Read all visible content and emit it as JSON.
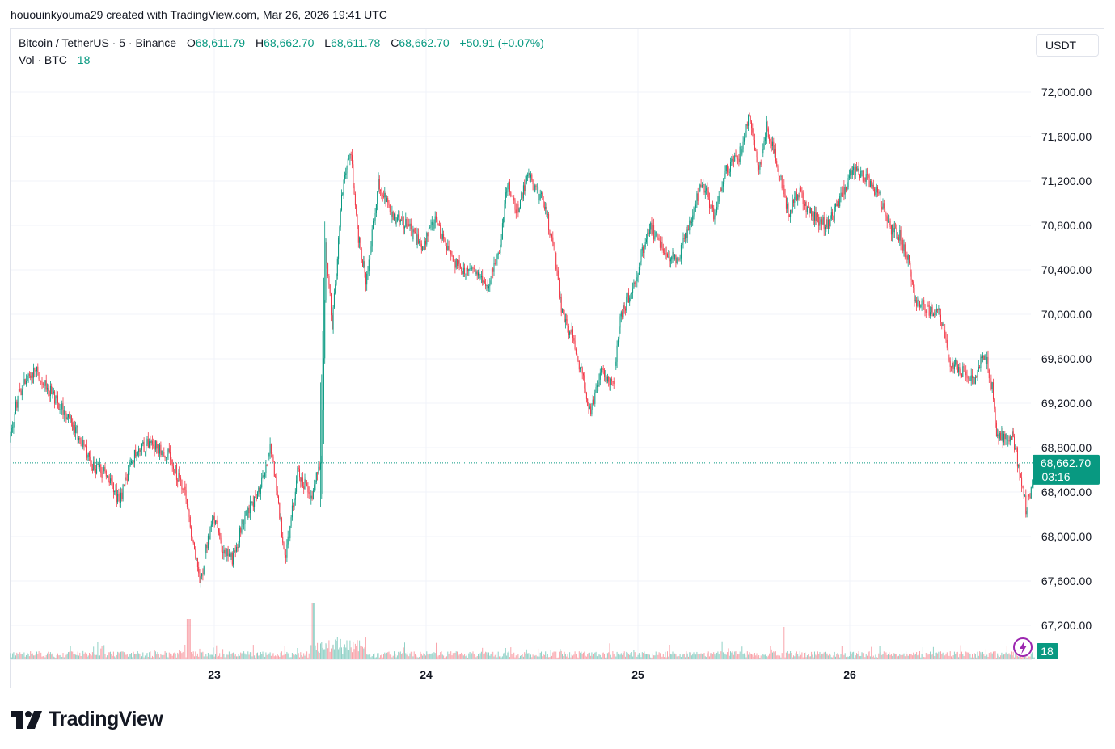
{
  "caption": "hououinkyouma29 created with TradingView.com, Mar 26, 2026 19:41 UTC",
  "legend": {
    "symbol": "Bitcoin / TetherUS · 5 · Binance",
    "o_label": "O",
    "o_value": "68,611.79",
    "h_label": "H",
    "h_value": "68,662.70",
    "l_label": "L",
    "l_value": "68,611.78",
    "c_label": "C",
    "c_value": "68,662.70",
    "change": "+50.91 (+0.07%)",
    "vol_label": "Vol · BTC",
    "vol_value": "18"
  },
  "currency": "USDT",
  "brand": "TradingView",
  "colors": {
    "up": "#089981",
    "down": "#f23645",
    "grid": "#f0f3fa",
    "text": "#131722"
  },
  "chart_data": {
    "type": "candlestick",
    "interval": "5m",
    "y_ticks": [
      "72,000.00",
      "71,600.00",
      "71,200.00",
      "70,800.00",
      "70,400.00",
      "70,000.00",
      "69,600.00",
      "69,200.00",
      "68,800.00",
      "68,400.00",
      "68,000.00",
      "67,600.00",
      "67,200.00"
    ],
    "y_tick_values": [
      72000,
      71600,
      71200,
      70800,
      70400,
      70000,
      69600,
      69200,
      68800,
      68400,
      68000,
      67600,
      67200
    ],
    "ylim": [
      67000,
      72200
    ],
    "x_ticks": [
      "23",
      "24",
      "25",
      "26"
    ],
    "last_price": 68662.7,
    "last_price_label": "68,662.70",
    "countdown": "03:16",
    "volume_badge": "18",
    "path_points": [
      [
        0,
        68900
      ],
      [
        10,
        69300
      ],
      [
        30,
        69500
      ],
      [
        60,
        69200
      ],
      [
        85,
        68900
      ],
      [
        100,
        68650
      ],
      [
        120,
        68550
      ],
      [
        135,
        68300
      ],
      [
        150,
        68700
      ],
      [
        170,
        68850
      ],
      [
        195,
        68750
      ],
      [
        215,
        68400
      ],
      [
        235,
        67600
      ],
      [
        250,
        68200
      ],
      [
        262,
        67900
      ],
      [
        275,
        67800
      ],
      [
        290,
        68200
      ],
      [
        305,
        68350
      ],
      [
        322,
        68800
      ],
      [
        340,
        67800
      ],
      [
        355,
        68600
      ],
      [
        372,
        68350
      ],
      [
        385,
        68700
      ],
      [
        390,
        70600
      ],
      [
        398,
        69900
      ],
      [
        410,
        71100
      ],
      [
        420,
        71500
      ],
      [
        430,
        70700
      ],
      [
        440,
        70300
      ],
      [
        455,
        71200
      ],
      [
        470,
        70900
      ],
      [
        490,
        70800
      ],
      [
        510,
        70600
      ],
      [
        525,
        70850
      ],
      [
        545,
        70500
      ],
      [
        560,
        70400
      ],
      [
        575,
        70400
      ],
      [
        590,
        70250
      ],
      [
        605,
        70600
      ],
      [
        615,
        71200
      ],
      [
        625,
        70900
      ],
      [
        640,
        71250
      ],
      [
        660,
        71000
      ],
      [
        672,
        70600
      ],
      [
        682,
        70000
      ],
      [
        695,
        69800
      ],
      [
        705,
        69500
      ],
      [
        718,
        69100
      ],
      [
        730,
        69500
      ],
      [
        745,
        69350
      ],
      [
        755,
        70000
      ],
      [
        770,
        70250
      ],
      [
        790,
        70800
      ],
      [
        810,
        70550
      ],
      [
        825,
        70500
      ],
      [
        840,
        70800
      ],
      [
        855,
        71200
      ],
      [
        870,
        70900
      ],
      [
        885,
        71300
      ],
      [
        900,
        71400
      ],
      [
        915,
        71800
      ],
      [
        925,
        71250
      ],
      [
        935,
        71700
      ],
      [
        950,
        71300
      ],
      [
        962,
        70900
      ],
      [
        975,
        71100
      ],
      [
        990,
        70900
      ],
      [
        1010,
        70800
      ],
      [
        1025,
        71000
      ],
      [
        1040,
        71300
      ],
      [
        1060,
        71200
      ],
      [
        1075,
        71050
      ],
      [
        1085,
        70800
      ],
      [
        1100,
        70700
      ],
      [
        1110,
        70500
      ],
      [
        1120,
        70100
      ],
      [
        1135,
        70050
      ],
      [
        1150,
        70000
      ],
      [
        1160,
        69600
      ],
      [
        1175,
        69500
      ],
      [
        1190,
        69400
      ],
      [
        1205,
        69650
      ],
      [
        1215,
        69300
      ],
      [
        1220,
        68900
      ],
      [
        1240,
        68900
      ],
      [
        1250,
        68500
      ],
      [
        1256,
        68250
      ],
      [
        1263,
        68450
      ],
      [
        1267,
        68663
      ]
    ]
  }
}
